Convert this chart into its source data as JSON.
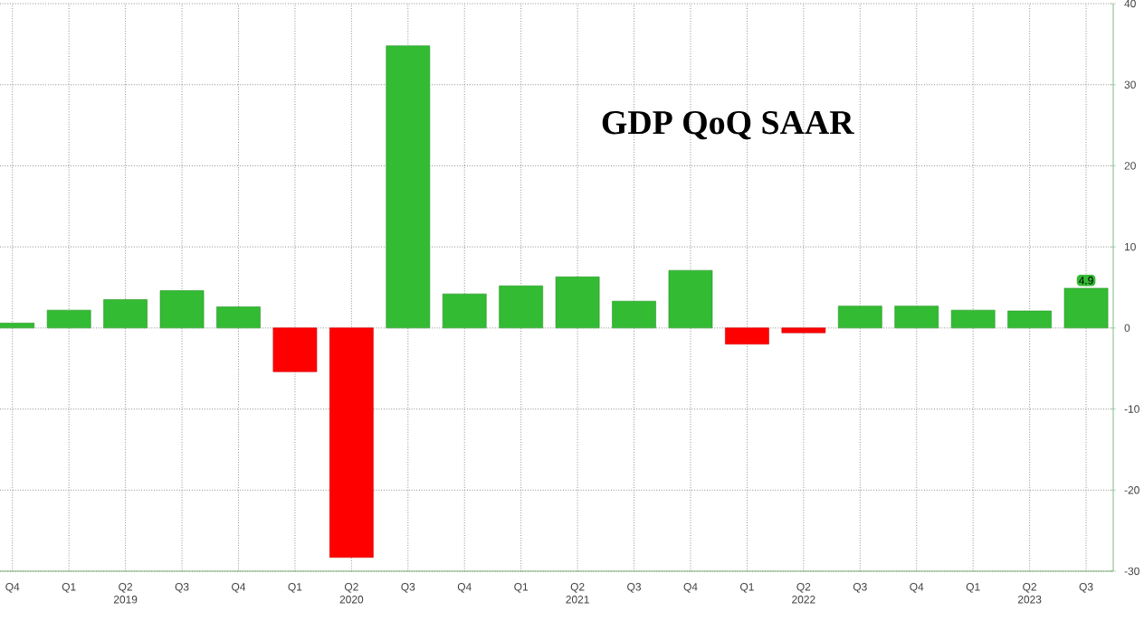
{
  "chart_data": {
    "type": "bar",
    "title": "GDP QoQ SAAR",
    "categories": [
      "Q4",
      "Q1",
      "Q2",
      "Q3",
      "Q4",
      "Q1",
      "Q2",
      "Q3",
      "Q4",
      "Q1",
      "Q2",
      "Q3",
      "Q4",
      "Q1",
      "Q2",
      "Q3",
      "Q4",
      "Q1",
      "Q2",
      "Q3"
    ],
    "values": [
      0.6,
      2.2,
      3.5,
      4.6,
      2.6,
      -5.4,
      -28.3,
      34.8,
      4.2,
      5.2,
      6.3,
      3.3,
      7.1,
      -2.0,
      -0.6,
      2.7,
      2.7,
      2.2,
      2.1,
      4.9
    ],
    "colors": [
      "#33bb33",
      "#33bb33",
      "#33bb33",
      "#33bb33",
      "#33bb33",
      "#ff0000",
      "#ff0000",
      "#33bb33",
      "#33bb33",
      "#33bb33",
      "#33bb33",
      "#33bb33",
      "#33bb33",
      "#ff0000",
      "#ff0000",
      "#33bb33",
      "#33bb33",
      "#33bb33",
      "#33bb33",
      "#33bb33"
    ],
    "value_labels": [
      null,
      null,
      null,
      null,
      null,
      null,
      null,
      null,
      null,
      null,
      null,
      null,
      null,
      null,
      null,
      null,
      null,
      null,
      null,
      "4.9"
    ],
    "annotations": [
      "2019",
      "2020",
      "2021",
      "2022",
      "2023"
    ],
    "ylim": [
      -30,
      40
    ],
    "yticks": [
      -30,
      -20,
      -10,
      0,
      10,
      20,
      30,
      40
    ],
    "grid": true
  }
}
